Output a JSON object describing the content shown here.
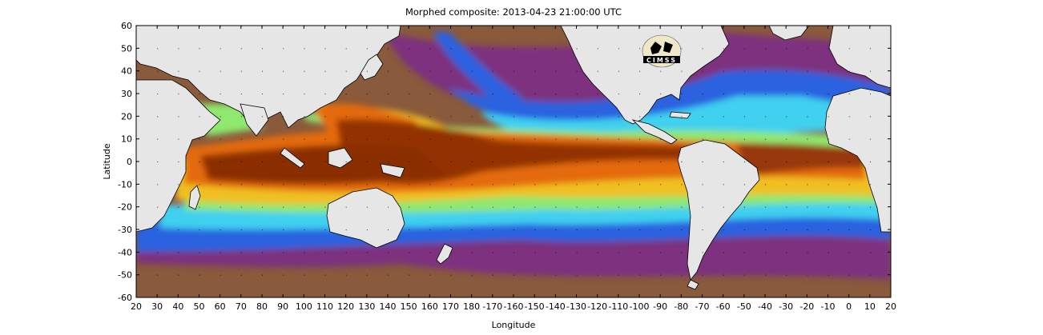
{
  "title": "Morphed composite: 2013-04-23 21:00:00 UTC",
  "xlabel": "Longitude",
  "ylabel": "Latitude",
  "logo_text": "CIMSS",
  "x_ticks": [
    "20",
    "30",
    "40",
    "50",
    "60",
    "70",
    "80",
    "90",
    "100",
    "110",
    "120",
    "130",
    "140",
    "150",
    "160",
    "170",
    "180",
    "-170",
    "-160",
    "-150",
    "-140",
    "-130",
    "-120",
    "-110",
    "-100",
    "-90",
    "-80",
    "-70",
    "-60",
    "-50",
    "-40",
    "-30",
    "-20",
    "-10",
    "0",
    "10",
    "20"
  ],
  "y_ticks": [
    "60",
    "50",
    "40",
    "30",
    "20",
    "10",
    "0",
    "-10",
    "-20",
    "-30",
    "-40",
    "-50",
    "-60"
  ],
  "colors": {
    "land": "#e6e6e6",
    "dry": "#8a5a3c",
    "purple": "#7a2a8a",
    "blue": "#2a62e0",
    "cyan": "#3fd0f0",
    "green": "#8fe870",
    "yellow": "#f0c020",
    "orange": "#e46a10",
    "wet": "#8a2e06"
  },
  "chart_data": {
    "type": "heatmap",
    "title": "Morphed composite: 2013-04-23 21:00:00 UTC",
    "xlabel": "Longitude",
    "ylabel": "Latitude",
    "xlim": [
      20,
      380
    ],
    "ylim": [
      -60,
      60
    ],
    "grid": true,
    "bands": [
      {
        "lon_min": 40,
        "lon_max": 100,
        "lat_min": -15,
        "lat_max": 5,
        "level": "wet"
      },
      {
        "lon_min": 95,
        "lon_max": 180,
        "lat_min": -15,
        "lat_max": 20,
        "level": "wet"
      },
      {
        "lon_min": 180,
        "lon_max": 280,
        "lat_min": 0,
        "lat_max": 10,
        "level": "wet"
      },
      {
        "lon_min": 320,
        "lon_max": 370,
        "lat_min": -5,
        "lat_max": 10,
        "level": "wet"
      }
    ]
  }
}
